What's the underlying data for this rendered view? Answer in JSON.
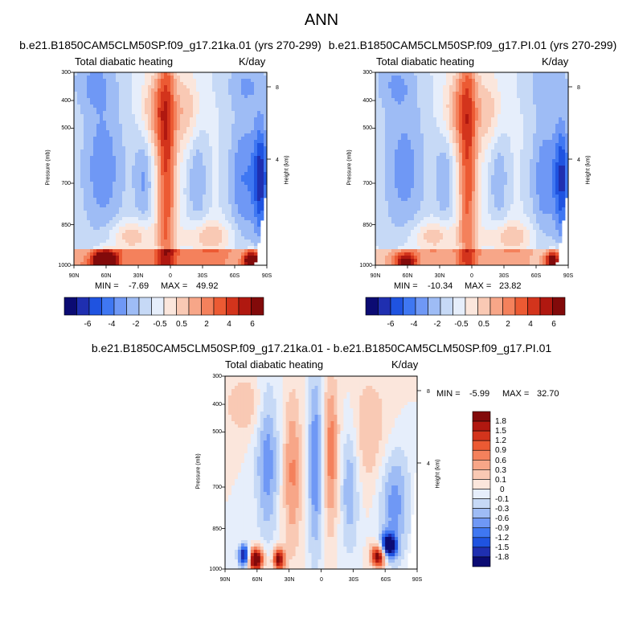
{
  "page_title": "ANN",
  "colors": {
    "levels_left_to_right": [
      "#0b0b73",
      "#1f2fb0",
      "#1f53e0",
      "#3f77f2",
      "#6f98f5",
      "#9ebcf5",
      "#c6d9f6",
      "#e6eefb",
      "#fbe6dc",
      "#f9c9b4",
      "#f7a688",
      "#f4815c",
      "#ec5a33",
      "#d3341c",
      "#b01810",
      "#820a0a"
    ]
  },
  "chart_data": [
    {
      "type": "heatmap",
      "case": "b.e21.B1850CAM5CLM50SP.f09_g17.21ka.01 (yrs 270-299)",
      "variable": "Total diabatic heating",
      "units": "K/day",
      "y_label": "Pressure (mb)",
      "y2_label": "Height (km)",
      "x_ticks": [
        "90N",
        "60N",
        "30N",
        "0",
        "30S",
        "60S",
        "90S"
      ],
      "y_ticks": [
        "300",
        "400",
        "500",
        "700",
        "850",
        "1000"
      ],
      "y2_ticks": [
        "8",
        "4"
      ],
      "min_label": "MIN =",
      "min": "-7.69",
      "max_label": "MAX =",
      "max": "49.92",
      "colorbar_ticks": [
        "-6",
        "-4",
        "-2",
        "-0.5",
        "0.5",
        "2",
        "4",
        "6"
      ]
    },
    {
      "type": "heatmap",
      "case": "b.e21.B1850CAM5CLM50SP.f09_g17.PI.01 (yrs 270-299)",
      "variable": "Total diabatic heating",
      "units": "K/day",
      "y_label": "Pressure (mb)",
      "y2_label": "Height (km)",
      "x_ticks": [
        "90N",
        "60N",
        "30N",
        "0",
        "30S",
        "60S",
        "90S"
      ],
      "y_ticks": [
        "300",
        "400",
        "500",
        "700",
        "850",
        "1000"
      ],
      "y2_ticks": [
        "8",
        "4"
      ],
      "min_label": "MIN =",
      "min": "-10.34",
      "max_label": "MAX =",
      "max": "23.82",
      "colorbar_ticks": [
        "-6",
        "-4",
        "-2",
        "-0.5",
        "0.5",
        "2",
        "4",
        "6"
      ]
    },
    {
      "type": "heatmap",
      "case": "b.e21.B1850CAM5CLM50SP.f09_g17.21ka.01 - b.e21.B1850CAM5CLM50SP.f09_g17.PI.01",
      "variable": "Total diabatic heating",
      "units": "K/day",
      "y_label": "Pressure (mb)",
      "y2_label": "Height (km)",
      "x_ticks": [
        "90N",
        "60N",
        "30N",
        "0",
        "30S",
        "60S",
        "90S"
      ],
      "y_ticks": [
        "300",
        "400",
        "500",
        "700",
        "850",
        "1000"
      ],
      "y2_ticks": [
        "8",
        "4"
      ],
      "min_label": "MIN =",
      "min": "-5.99",
      "max_label": "MAX =",
      "max": "32.70",
      "colorbar_ticks": [
        "1.8",
        "1.5",
        "1.2",
        "0.9",
        "0.6",
        "0.3",
        "0.1",
        "0",
        "-0.1",
        "-0.3",
        "-0.6",
        "-0.9",
        "-1.2",
        "-1.5",
        "-1.8"
      ]
    }
  ]
}
